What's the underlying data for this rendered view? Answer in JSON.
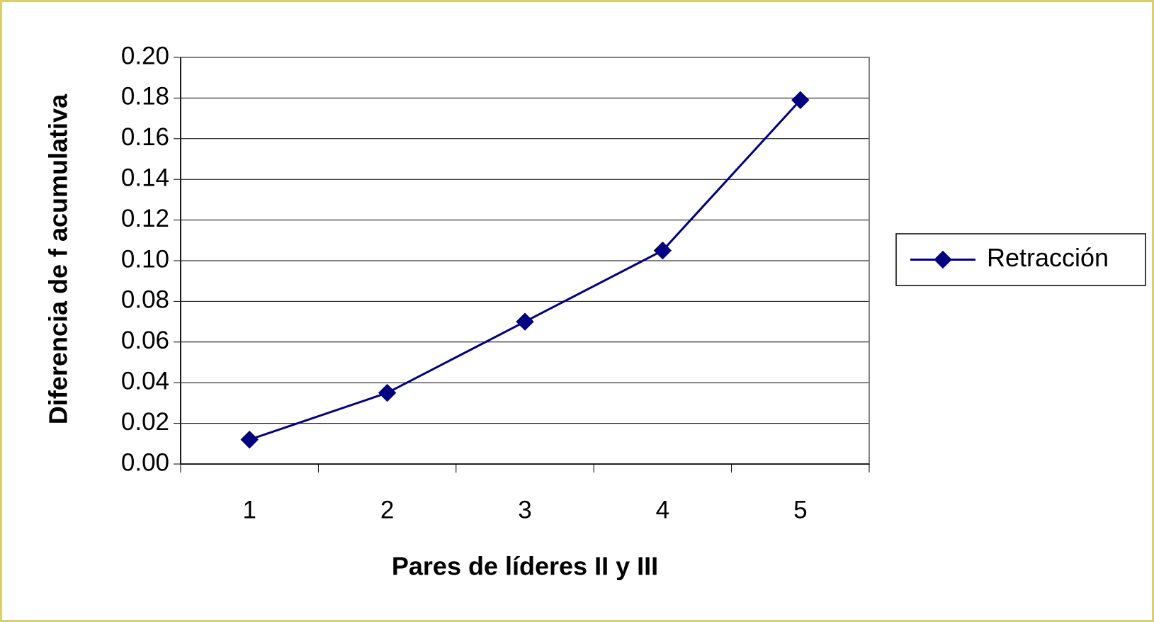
{
  "chart_data": {
    "type": "line",
    "y_label": "Diferencia de f acumulativa",
    "x_label": "Pares de líderes II y III",
    "categories": [
      "1",
      "2",
      "3",
      "4",
      "5"
    ],
    "series": [
      {
        "name": "Retracción",
        "color": "#000080",
        "values": [
          0.012,
          0.035,
          0.07,
          0.105,
          0.179
        ]
      }
    ],
    "ylim": [
      0,
      0.2
    ],
    "yticks": [
      {
        "value": 0,
        "label": "0.00"
      },
      {
        "value": 0.02,
        "label": "0.02"
      },
      {
        "value": 0.04,
        "label": "0.04"
      },
      {
        "value": 0.06,
        "label": "0.06"
      },
      {
        "value": 0.08,
        "label": "0.08"
      },
      {
        "value": 0.1,
        "label": "0.10"
      },
      {
        "value": 0.12,
        "label": "0.12"
      },
      {
        "value": 0.14,
        "label": "0.14"
      },
      {
        "value": 0.16,
        "label": "0.16"
      },
      {
        "value": 0.18,
        "label": "0.18"
      },
      {
        "value": 0.2,
        "label": "0.20"
      }
    ],
    "grid": true,
    "legend": "right"
  }
}
